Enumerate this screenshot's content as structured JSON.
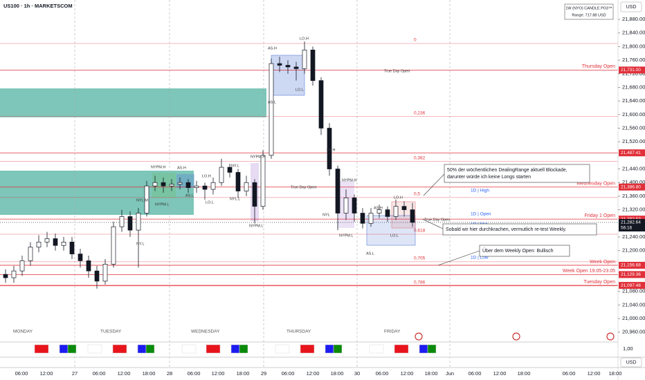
{
  "header": {
    "symbol": "US100 · 1h · MARKETSCOM",
    "indicator_title": "1W (NYO) CANDLE PO3™",
    "indicator_range": "Range: 717.88 USD",
    "currency": "USD",
    "currency_bottom": "USD",
    "pane_value": "1,00"
  },
  "chart_data": {
    "type": "candlestick",
    "open": [
      21130,
      21120,
      21140,
      21170,
      21210,
      21225,
      21235,
      21215,
      21225,
      21190,
      21170,
      21140,
      21110,
      21160,
      21270,
      21300,
      21260,
      21310,
      21390,
      21400,
      21390,
      21395,
      21400,
      21385,
      21390,
      21380,
      21400,
      21445,
      21430,
      21375,
      21400,
      21330,
      21480,
      21750,
      21745,
      21740,
      21735,
      21790,
      21700,
      21560,
      21440,
      21310,
      21355,
      21310,
      21280,
      21310,
      21320,
      21300,
      21330,
      21320
    ],
    "high": [
      21145,
      21155,
      21185,
      21225,
      21245,
      21255,
      21250,
      21240,
      21240,
      21205,
      21185,
      21155,
      21175,
      21285,
      21320,
      21315,
      21325,
      21405,
      21420,
      21415,
      21410,
      21415,
      21410,
      21405,
      21400,
      21415,
      21470,
      21455,
      21440,
      21420,
      21410,
      21495,
      21765,
      21770,
      21760,
      21755,
      21815,
      21800,
      21710,
      21575,
      21450,
      21380,
      21365,
      21325,
      21325,
      21335,
      21330,
      21350,
      21345,
      21340
    ],
    "low": [
      21105,
      21105,
      21125,
      21155,
      21195,
      21210,
      21200,
      21200,
      21175,
      21150,
      21120,
      21088,
      21100,
      21150,
      21255,
      21240,
      21150,
      21300,
      21375,
      21370,
      21375,
      21380,
      21370,
      21370,
      21350,
      21365,
      21390,
      21415,
      21355,
      21360,
      21280,
      21320,
      21470,
      21725,
      21720,
      21700,
      21720,
      21685,
      21540,
      21420,
      21260,
      21290,
      21285,
      21265,
      21270,
      21295,
      21285,
      21290,
      21300,
      21270
    ],
    "close": [
      21120,
      21140,
      21170,
      21210,
      21225,
      21235,
      21215,
      21225,
      21190,
      21170,
      21140,
      21110,
      21160,
      21270,
      21300,
      21260,
      21310,
      21390,
      21400,
      21390,
      21395,
      21400,
      21385,
      21390,
      21380,
      21400,
      21445,
      21430,
      21375,
      21400,
      21330,
      21480,
      21750,
      21745,
      21740,
      21735,
      21790,
      21700,
      21560,
      21440,
      21310,
      21355,
      21310,
      21280,
      21310,
      21320,
      21300,
      21330,
      21320,
      21283
    ],
    "up_color": "#ffffff",
    "down_color": "#131722",
    "ylim": [
      20931,
      21937
    ],
    "yticks": [
      {
        "value": 21880,
        "label": "21,880.00"
      },
      {
        "value": 21840,
        "label": "21,840.00"
      },
      {
        "value": 21800,
        "label": "21,800.00"
      },
      {
        "value": 21760,
        "label": "21,760.00"
      },
      {
        "value": 21720,
        "label": "21,720.00"
      },
      {
        "value": 21680,
        "label": "21,680.00"
      },
      {
        "value": 21640,
        "label": "21,640.00"
      },
      {
        "value": 21600,
        "label": "21,600.00"
      },
      {
        "value": 21560,
        "label": "21,560.00"
      },
      {
        "value": 21520,
        "label": "21,520.00"
      },
      {
        "value": 21440,
        "label": "21,440.00"
      },
      {
        "value": 21400,
        "label": "21,400.00"
      },
      {
        "value": 21360,
        "label": "21,360.00"
      },
      {
        "value": 21320,
        "label": "21,320.00"
      },
      {
        "value": 21240,
        "label": "21,240.00"
      },
      {
        "value": 21200,
        "label": "21,200.00"
      },
      {
        "value": 21080,
        "label": "21,080.00"
      },
      {
        "value": 21040,
        "label": "21,040.00"
      },
      {
        "value": 21000,
        "label": "21,000.00"
      },
      {
        "value": 20960,
        "label": "20,960.00"
      }
    ],
    "levels": [
      {
        "name": "Thursday Open",
        "price": {
          "value": 21731,
          "label": "21,731.00"
        }
      },
      {
        "price": {
          "value": 21487.41,
          "label": "21,487.41"
        }
      },
      {
        "name": "Wednesday Open",
        "price": {
          "value": 21386.8,
          "label": "21,386.80"
        }
      },
      {
        "name": "Friday 1 Open",
        "price": {
          "value": 21292.53,
          "label": "21,292.53"
        }
      },
      {
        "name": "Week Open",
        "price": {
          "value": 21156.68,
          "label": "21,156.68"
        }
      },
      {
        "name": "Week Open 19.05-23.05",
        "price": {
          "value": 21129.36,
          "label": "21,129.36"
        }
      },
      {
        "name": "Tuesday  Open",
        "price": {
          "value": 21097.48,
          "label": "21,097.48"
        }
      }
    ],
    "level_color": "#e0303a",
    "last_price": {
      "value": 21282.64,
      "label": "21,282.64"
    },
    "countdown": "56:16",
    "fib": [
      {
        "label": "0",
        "price": 21809
      },
      {
        "label": "0,236",
        "price": 21594
      },
      {
        "label": "0,382",
        "price": 21462
      },
      {
        "label": "0,5",
        "price": 21356
      },
      {
        "label": "0,618",
        "price": 21248
      },
      {
        "label": "0,705",
        "price": 21167
      },
      {
        "label": "0,786",
        "price": 21096
      }
    ],
    "zones": [
      {
        "low": 21592,
        "high": 21677
      },
      {
        "low": 21305,
        "high": 21435
      }
    ],
    "zone_color": "#26a08a",
    "day_labels": [
      "MONDAY",
      "TUESDAY",
      "WEDNESDAY",
      "THURSDAY",
      "FRIDAY"
    ],
    "time_labels": [
      "06:00",
      "12:00",
      "27",
      "06:00",
      "12:00",
      "18:00",
      "28",
      "06:00",
      "12:00",
      "18:00",
      "29",
      "06:00",
      "12:00",
      "18:00",
      "30",
      "06:00",
      "12:00",
      "18:00",
      "Jun",
      "06:00",
      "12:00",
      "18:00",
      "06:00",
      "12:00",
      "18:00"
    ],
    "session_labels": [
      "LO.H",
      "AS.H",
      "AS.L",
      "LO.L",
      "True Day Open",
      "NYPM.H",
      "NY.H",
      "NY.L",
      "NYPM.H",
      "AS.H",
      "LO.H",
      "AS.L",
      "LO.L",
      "NYL.M",
      "NYPM.L",
      "NY.L",
      "NYPM.L",
      "NYL.L",
      "True Day Open",
      "NYPM.H",
      "AS.H",
      "LO.H",
      "NYL",
      "NYPM.L",
      "LO.L",
      "AS.L",
      "True Day Open",
      "1D | High",
      "1D | Open",
      "1D | Mid",
      "1D | Low"
    ],
    "annotations": [
      [
        "50% der wöchentlichen DealingRange aktuell Blockade,",
        "darunter würde ich keine Longs starten"
      ],
      [
        "Sobald wir hier durchkrachen, vermutlich re-test Weekly."
      ],
      [
        "Über dem Weekly Open: Bullisch"
      ]
    ]
  }
}
